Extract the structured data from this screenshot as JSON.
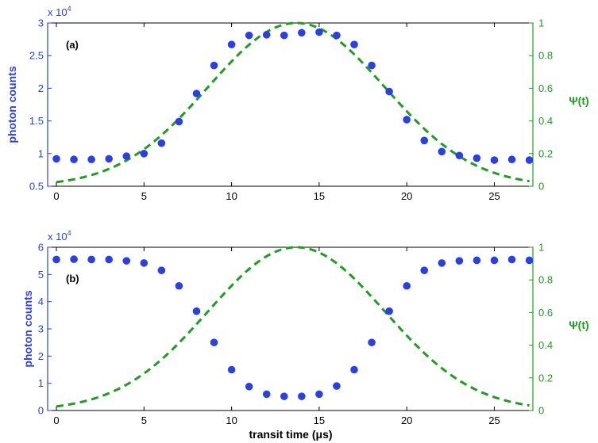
{
  "colors": {
    "counts": "#2a3fe6",
    "psi": "#1e9e1e",
    "axis": "#000000"
  },
  "chart_data": [
    {
      "type": "scatter",
      "panel_label": "(a)",
      "xlim": [
        -0.5,
        27.2
      ],
      "x_ticks": [
        0,
        5,
        10,
        15,
        20,
        25
      ],
      "x_tick_labels": [
        "0",
        "5",
        "10",
        "15",
        "20",
        "25"
      ],
      "ylabel_left": "photon counts",
      "ylim_left": [
        0.5,
        3
      ],
      "y_ticks_left": [
        0.5,
        1,
        1.5,
        2,
        2.5,
        3
      ],
      "y_tick_labels_left": [
        "0.5",
        "1",
        "1.5",
        "2",
        "2.5",
        "3"
      ],
      "multiplier": {
        "base": "x 10",
        "exp": "4"
      },
      "ylabel_right": "Ψ(t)",
      "ylim_right": [
        0,
        1
      ],
      "y_ticks_right": [
        0,
        0.2,
        0.4,
        0.6,
        0.8,
        1
      ],
      "y_tick_labels_right": [
        "0",
        "0.2",
        "0.4",
        "0.6",
        "0.8",
        "1"
      ],
      "series": [
        {
          "kind": "points",
          "axis": "left",
          "x": [
            0,
            1,
            2,
            3,
            4,
            5,
            6,
            7,
            8,
            9,
            10,
            11,
            12,
            13,
            14,
            15,
            16,
            17,
            18,
            19,
            20,
            21,
            22,
            23,
            24,
            25,
            26,
            27
          ],
          "y": [
            0.92,
            0.91,
            0.91,
            0.92,
            0.96,
            1.0,
            1.16,
            1.49,
            1.92,
            2.35,
            2.67,
            2.81,
            2.82,
            2.81,
            2.85,
            2.86,
            2.81,
            2.67,
            2.35,
            1.95,
            1.52,
            1.2,
            1.03,
            0.97,
            0.93,
            0.9,
            0.91,
            0.9
          ]
        },
        {
          "kind": "dashed-line",
          "axis": "right",
          "curve": "gaussian",
          "center": 13.7,
          "sigma": 5.05,
          "amplitude": 1.0
        }
      ]
    },
    {
      "type": "scatter",
      "panel_label": "(b)",
      "xlim": [
        -0.5,
        27.2
      ],
      "x_ticks": [
        0,
        5,
        10,
        15,
        20,
        25
      ],
      "x_tick_labels": [
        "0",
        "5",
        "10",
        "15",
        "20",
        "25"
      ],
      "xlabel": "transit time (μs)",
      "ylabel_left": "photon counts",
      "ylim_left": [
        0,
        6
      ],
      "y_ticks_left": [
        0,
        1,
        2,
        3,
        4,
        5,
        6
      ],
      "y_tick_labels_left": [
        "0",
        "1",
        "2",
        "3",
        "4",
        "5",
        "6"
      ],
      "multiplier": {
        "base": "x 10",
        "exp": "4"
      },
      "ylabel_right": "Ψ(t)",
      "ylim_right": [
        0,
        1
      ],
      "y_ticks_right": [
        0,
        0.2,
        0.4,
        0.6,
        0.8,
        1
      ],
      "y_tick_labels_right": [
        "0",
        "0.2",
        "0.4",
        "0.6",
        "0.8",
        "1"
      ],
      "series": [
        {
          "kind": "points",
          "axis": "left",
          "x": [
            0,
            1,
            2,
            3,
            4,
            5,
            6,
            7,
            8,
            9,
            10,
            11,
            12,
            13,
            14,
            15,
            16,
            17,
            18,
            19,
            20,
            21,
            22,
            23,
            24,
            25,
            26,
            27
          ],
          "y": [
            5.55,
            5.56,
            5.55,
            5.55,
            5.5,
            5.42,
            5.15,
            4.58,
            3.65,
            2.5,
            1.5,
            0.88,
            0.6,
            0.52,
            0.52,
            0.6,
            0.9,
            1.5,
            2.5,
            3.65,
            4.58,
            5.15,
            5.42,
            5.5,
            5.52,
            5.52,
            5.55,
            5.52
          ]
        },
        {
          "kind": "dashed-line",
          "axis": "right",
          "curve": "gaussian",
          "center": 13.7,
          "sigma": 5.05,
          "amplitude": 1.0
        }
      ]
    }
  ]
}
